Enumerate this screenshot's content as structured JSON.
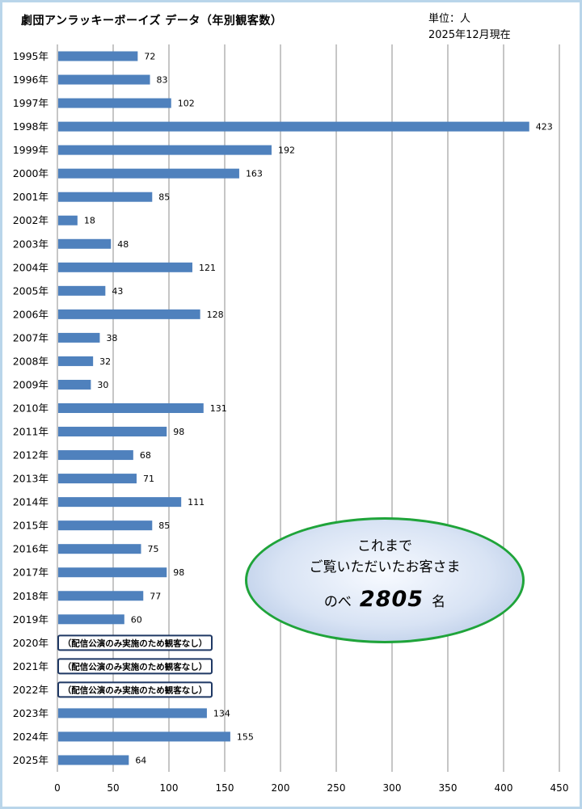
{
  "title": "劇団アンラッキーボーイズ データ（年別観客数）",
  "unit_label": "単位：人",
  "as_of": "2025年12月現在",
  "summary": {
    "line1": "これまで",
    "line2": "ご覧いただいたお客さま",
    "prefix": "のべ",
    "total": "2805",
    "suffix": "名"
  },
  "colors": {
    "bar": "#4f81bd",
    "grid": "#8c8c8c",
    "bubble_border": "#1fa43a",
    "note_border": "#1f3864"
  },
  "chart_data": {
    "type": "bar",
    "orientation": "horizontal",
    "title": "劇団アンラッキーボーイズ データ（年別観客数）",
    "xlim": [
      0,
      450
    ],
    "xticks": [
      0,
      50,
      100,
      150,
      200,
      250,
      300,
      350,
      400,
      450
    ],
    "grid": true,
    "categories": [
      "1995年",
      "1996年",
      "1997年",
      "1998年",
      "1999年",
      "2000年",
      "2001年",
      "2002年",
      "2003年",
      "2004年",
      "2005年",
      "2006年",
      "2007年",
      "2008年",
      "2009年",
      "2010年",
      "2011年",
      "2012年",
      "2013年",
      "2014年",
      "2015年",
      "2016年",
      "2017年",
      "2018年",
      "2019年",
      "2020年",
      "2021年",
      "2022年",
      "2023年",
      "2024年",
      "2025年"
    ],
    "values": [
      72,
      83,
      102,
      423,
      192,
      163,
      85,
      18,
      48,
      121,
      43,
      128,
      38,
      32,
      30,
      131,
      98,
      68,
      71,
      111,
      85,
      75,
      98,
      77,
      60,
      null,
      null,
      null,
      134,
      155,
      64
    ],
    "notes": [
      "",
      "",
      "",
      "",
      "",
      "",
      "",
      "",
      "",
      "",
      "",
      "",
      "",
      "",
      "",
      "",
      "",
      "",
      "",
      "",
      "",
      "",
      "",
      "",
      "",
      "（配信公演のみ実施のため観客なし）",
      "（配信公演のみ実施のため観客なし）",
      "（配信公演のみ実施のため観客なし）",
      "",
      "",
      ""
    ]
  }
}
